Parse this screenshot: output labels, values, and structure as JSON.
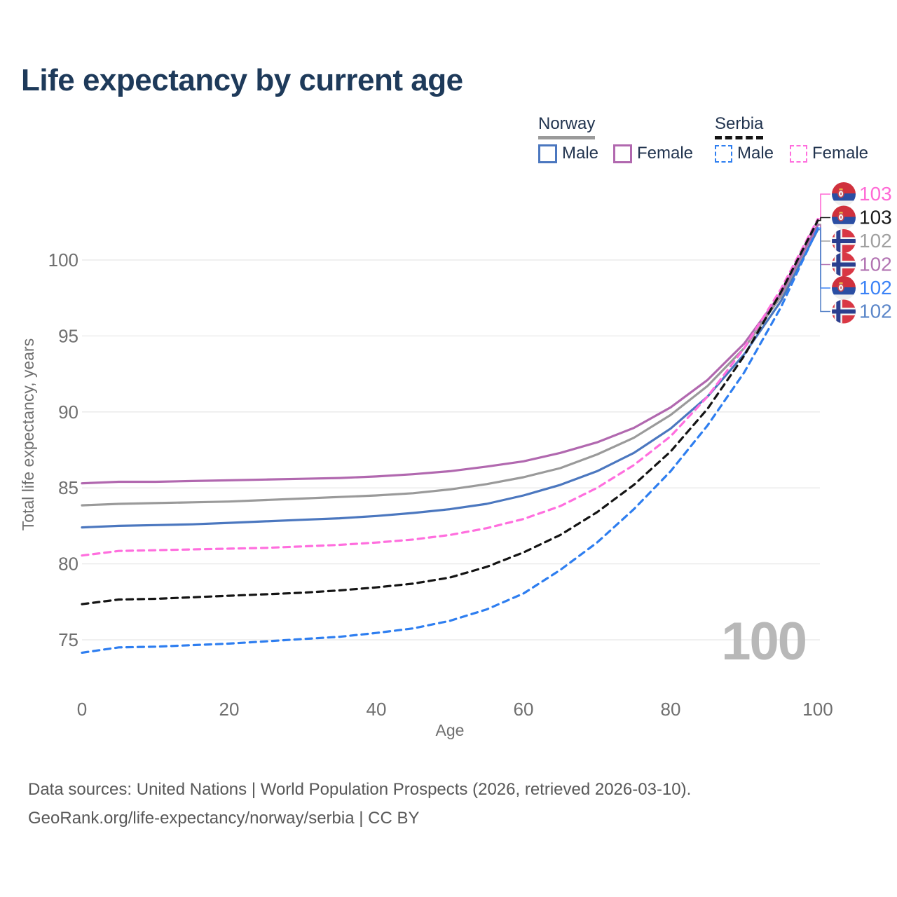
{
  "header": {
    "title": "Life expectancy by current age"
  },
  "legend": {
    "groups": [
      {
        "label": "Norway",
        "line_style": "solid",
        "underline_color": "#9a9a9a",
        "items": [
          {
            "label": "Male",
            "color": "#4b77bf",
            "dash": false
          },
          {
            "label": "Female",
            "color": "#b168af",
            "dash": false
          }
        ]
      },
      {
        "label": "Serbia",
        "line_style": "dashed",
        "underline_color": "#141414",
        "items": [
          {
            "label": "Male",
            "color": "#2e7ef0",
            "dash": true
          },
          {
            "label": "Female",
            "color": "#ff6ede",
            "dash": true
          }
        ]
      }
    ]
  },
  "chart_data": {
    "type": "line",
    "title": "Life expectancy by current age",
    "xlabel": "Age",
    "ylabel": "Total life expectancy, years",
    "xlim": [
      0,
      100
    ],
    "ylim": [
      73.5,
      103.5
    ],
    "xticks": [
      0,
      20,
      40,
      60,
      80,
      100
    ],
    "yticks": [
      75,
      80,
      85,
      90,
      95,
      100
    ],
    "grid": "horizontal-only",
    "legend_position": "top-right",
    "x": [
      0,
      5,
      10,
      15,
      20,
      25,
      30,
      35,
      40,
      45,
      50,
      55,
      60,
      65,
      70,
      75,
      80,
      85,
      90,
      95,
      100
    ],
    "series": [
      {
        "key": "norway-male",
        "name": "Norway Male",
        "country": "Norway",
        "sex": "Male",
        "color": "#4b77bf",
        "dash": false,
        "values": [
          82.4,
          82.5,
          82.55,
          82.6,
          82.7,
          82.8,
          82.9,
          83.0,
          83.15,
          83.35,
          83.6,
          83.95,
          84.5,
          85.2,
          86.1,
          87.3,
          88.9,
          91.0,
          93.8,
          97.3,
          102.0
        ]
      },
      {
        "key": "norway-total",
        "name": "Norway",
        "country": "Norway",
        "sex": "Both",
        "color": "#9a9a9a",
        "dash": false,
        "values": [
          83.85,
          83.95,
          84.0,
          84.05,
          84.1,
          84.2,
          84.3,
          84.4,
          84.5,
          84.65,
          84.9,
          85.25,
          85.7,
          86.3,
          87.2,
          88.3,
          89.8,
          91.7,
          94.2,
          97.6,
          102.35
        ]
      },
      {
        "key": "norway-female",
        "name": "Norway Female",
        "country": "Norway",
        "sex": "Female",
        "color": "#b168af",
        "dash": false,
        "values": [
          85.3,
          85.4,
          85.4,
          85.45,
          85.5,
          85.55,
          85.6,
          85.65,
          85.75,
          85.9,
          86.1,
          86.4,
          86.75,
          87.3,
          88.0,
          88.95,
          90.3,
          92.1,
          94.5,
          97.8,
          102.3
        ]
      },
      {
        "key": "serbia-female",
        "name": "Serbia Female",
        "country": "Serbia",
        "sex": "Female",
        "color": "#ff6ede",
        "dash": true,
        "values": [
          80.55,
          80.85,
          80.9,
          80.95,
          81.0,
          81.05,
          81.15,
          81.25,
          81.4,
          81.6,
          81.9,
          82.35,
          82.95,
          83.8,
          85.0,
          86.5,
          88.4,
          91.0,
          94.2,
          98.1,
          102.7
        ]
      },
      {
        "key": "serbia-male",
        "name": "Serbia Male",
        "country": "Serbia",
        "sex": "Male",
        "color": "#2e7ef0",
        "dash": true,
        "values": [
          74.15,
          74.5,
          74.55,
          74.65,
          74.75,
          74.9,
          75.05,
          75.2,
          75.45,
          75.75,
          76.25,
          77.0,
          78.05,
          79.6,
          81.4,
          83.6,
          86.1,
          89.1,
          92.6,
          96.9,
          102.1
        ]
      },
      {
        "key": "serbia-total",
        "name": "Serbia",
        "country": "Serbia",
        "sex": "Both",
        "color": "#141414",
        "dash": true,
        "values": [
          77.35,
          77.65,
          77.7,
          77.8,
          77.9,
          78.0,
          78.1,
          78.25,
          78.45,
          78.7,
          79.1,
          79.8,
          80.75,
          81.9,
          83.4,
          85.2,
          87.4,
          90.2,
          93.7,
          97.9,
          102.6
        ]
      }
    ],
    "end_labels": [
      {
        "series": "serbia-female",
        "flag": "serbia",
        "label": "103",
        "color": "#ff6ad5"
      },
      {
        "series": "serbia-total",
        "flag": "serbia",
        "label": "103",
        "color": "#1a1a1a"
      },
      {
        "series": "norway-total",
        "flag": "norway",
        "label": "102",
        "color": "#a0a0a0"
      },
      {
        "series": "norway-female",
        "flag": "norway",
        "label": "102",
        "color": "#b273b2"
      },
      {
        "series": "serbia-male",
        "flag": "serbia",
        "label": "102",
        "color": "#3b82f6"
      },
      {
        "series": "norway-male",
        "flag": "norway",
        "label": "102",
        "color": "#5b86c9"
      }
    ]
  },
  "watermark": {
    "text": "100"
  },
  "colors": {
    "title_text": "#1e3a5a",
    "axis_text": "#6f6f6f",
    "gridline": "#e8e8e8",
    "watermark": "#b8b8b8",
    "footer_text": "#585858"
  },
  "footer": {
    "line1": "Data sources: United Nations | World Population Prospects (2026, retrieved 2026-03-10).",
    "line2": "GeoRank.org/life-expectancy/norway/serbia | CC BY"
  }
}
